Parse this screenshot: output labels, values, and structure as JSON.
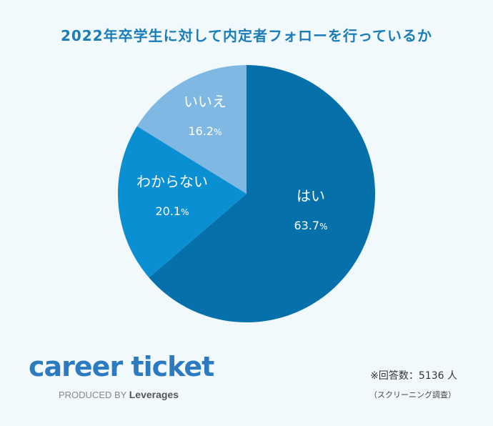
{
  "chart_data": {
    "type": "pie",
    "title": "2022年卒学生に対して内定者フォローを行っているか",
    "slices": [
      {
        "label": "はい",
        "value": 63.7,
        "value_label": "63.7",
        "color": "#0570a9"
      },
      {
        "label": "わからない",
        "value": 20.1,
        "value_label": "20.1",
        "color": "#0b8fd3"
      },
      {
        "label": "いいえ",
        "value": 16.2,
        "value_label": "16.2",
        "color": "#80b8e4"
      }
    ],
    "unit": "%",
    "start": "12 o'clock, clockwise"
  },
  "logo": {
    "main": "career ticket",
    "sub_prefix": "PRODUCED BY",
    "sub_brand": "Leverages"
  },
  "note": {
    "main": "※回答数：5136 人",
    "sub": "（スクリーニング調査）"
  },
  "colors": {
    "background": "#f1f9fd",
    "title": "#1a7db7",
    "label_text": "#ffffff"
  }
}
